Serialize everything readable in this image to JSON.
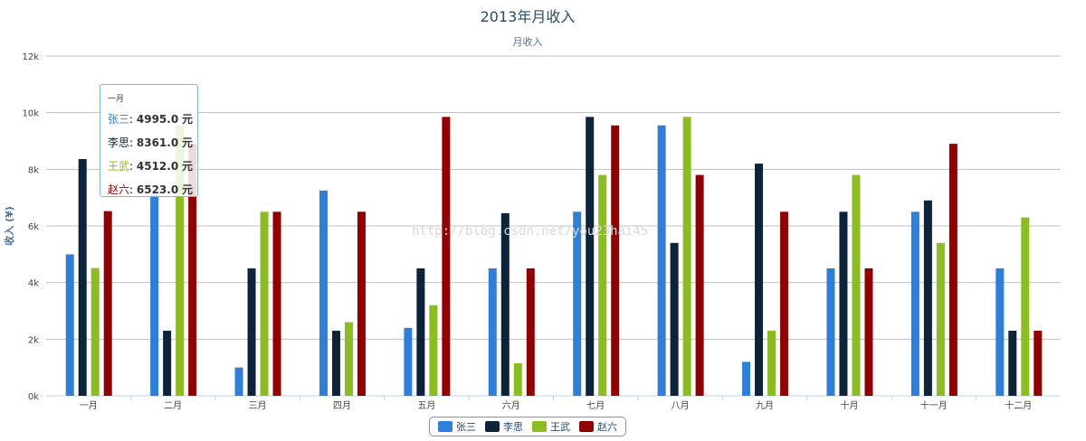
{
  "chart_data": {
    "type": "bar",
    "title": "2013年月收入",
    "subtitle": "月收入",
    "ylabel": "收入 (¥)",
    "xlabel": "",
    "ylim": [
      0,
      12000
    ],
    "yticks": [
      "0k",
      "2k",
      "4k",
      "6k",
      "8k",
      "10k",
      "12k"
    ],
    "grid": true,
    "legend_position": "bottom-center",
    "categories": [
      "一月",
      "二月",
      "三月",
      "四月",
      "五月",
      "六月",
      "七月",
      "八月",
      "九月",
      "十月",
      "十一月",
      "十二月"
    ],
    "series": [
      {
        "name": "张三",
        "color": "#2f7ed8",
        "values": [
          4995,
          7100,
          1000,
          7250,
          2400,
          4500,
          6500,
          9550,
          1200,
          4500,
          6500,
          4500
        ]
      },
      {
        "name": "李思",
        "color": "#0d233a",
        "values": [
          8361,
          2300,
          4500,
          2300,
          4500,
          6450,
          9850,
          5400,
          8200,
          6500,
          6900,
          2300
        ]
      },
      {
        "name": "王武",
        "color": "#8bbc21",
        "values": [
          4512,
          9550,
          6500,
          2600,
          3200,
          1150,
          7800,
          9850,
          2300,
          7800,
          5400,
          6300
        ]
      },
      {
        "name": "赵六",
        "color": "#910000",
        "values": [
          6523,
          8900,
          6500,
          6500,
          9850,
          4500,
          9550,
          7800,
          6500,
          4500,
          8900,
          2300
        ]
      }
    ],
    "tooltip": {
      "header": "一月",
      "rows": [
        {
          "name": "张三",
          "value": "4995.0",
          "unit": "元",
          "color": "#2f7ed8"
        },
        {
          "name": "李思",
          "value": "8361.0",
          "unit": "元",
          "color": "#0d233a"
        },
        {
          "name": "王武",
          "value": "4512.0",
          "unit": "元",
          "color": "#8bbc21"
        },
        {
          "name": "赵六",
          "value": "6523.0",
          "unit": "元",
          "color": "#910000"
        }
      ]
    }
  },
  "watermark": "http://blog.csdn.net/you23hai45"
}
